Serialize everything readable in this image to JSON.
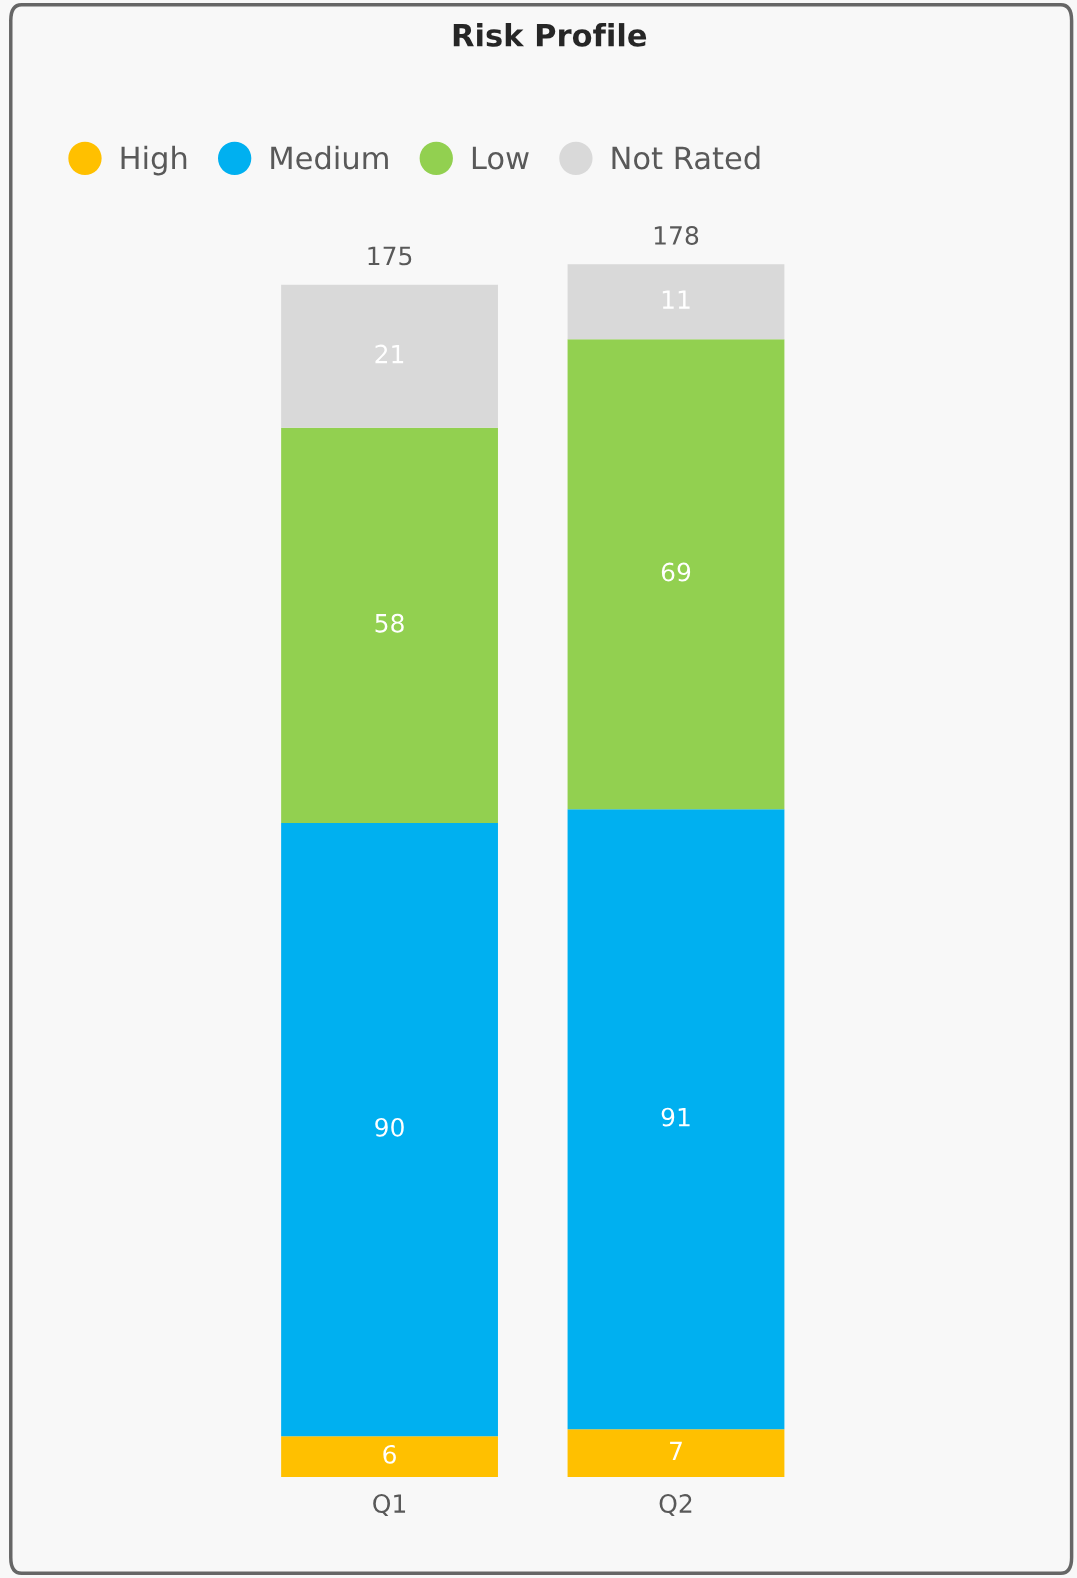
{
  "chart_data": {
    "type": "bar",
    "title": "Risk Profile",
    "categories": [
      "Q1",
      "Q2"
    ],
    "stacked": true,
    "series": [
      {
        "name": "High",
        "color": "#ffc000",
        "values": [
          6,
          7
        ]
      },
      {
        "name": "Medium",
        "color": "#00b0f0",
        "values": [
          90,
          91
        ]
      },
      {
        "name": "Low",
        "color": "#92d050",
        "values": [
          58,
          69
        ]
      },
      {
        "name": "Not Rated",
        "color": "#d9d9d9",
        "values": [
          21,
          11
        ]
      }
    ],
    "data_labels": true,
    "totals": [
      "175",
      "178"
    ],
    "legend": "top left",
    "grid": false
  }
}
